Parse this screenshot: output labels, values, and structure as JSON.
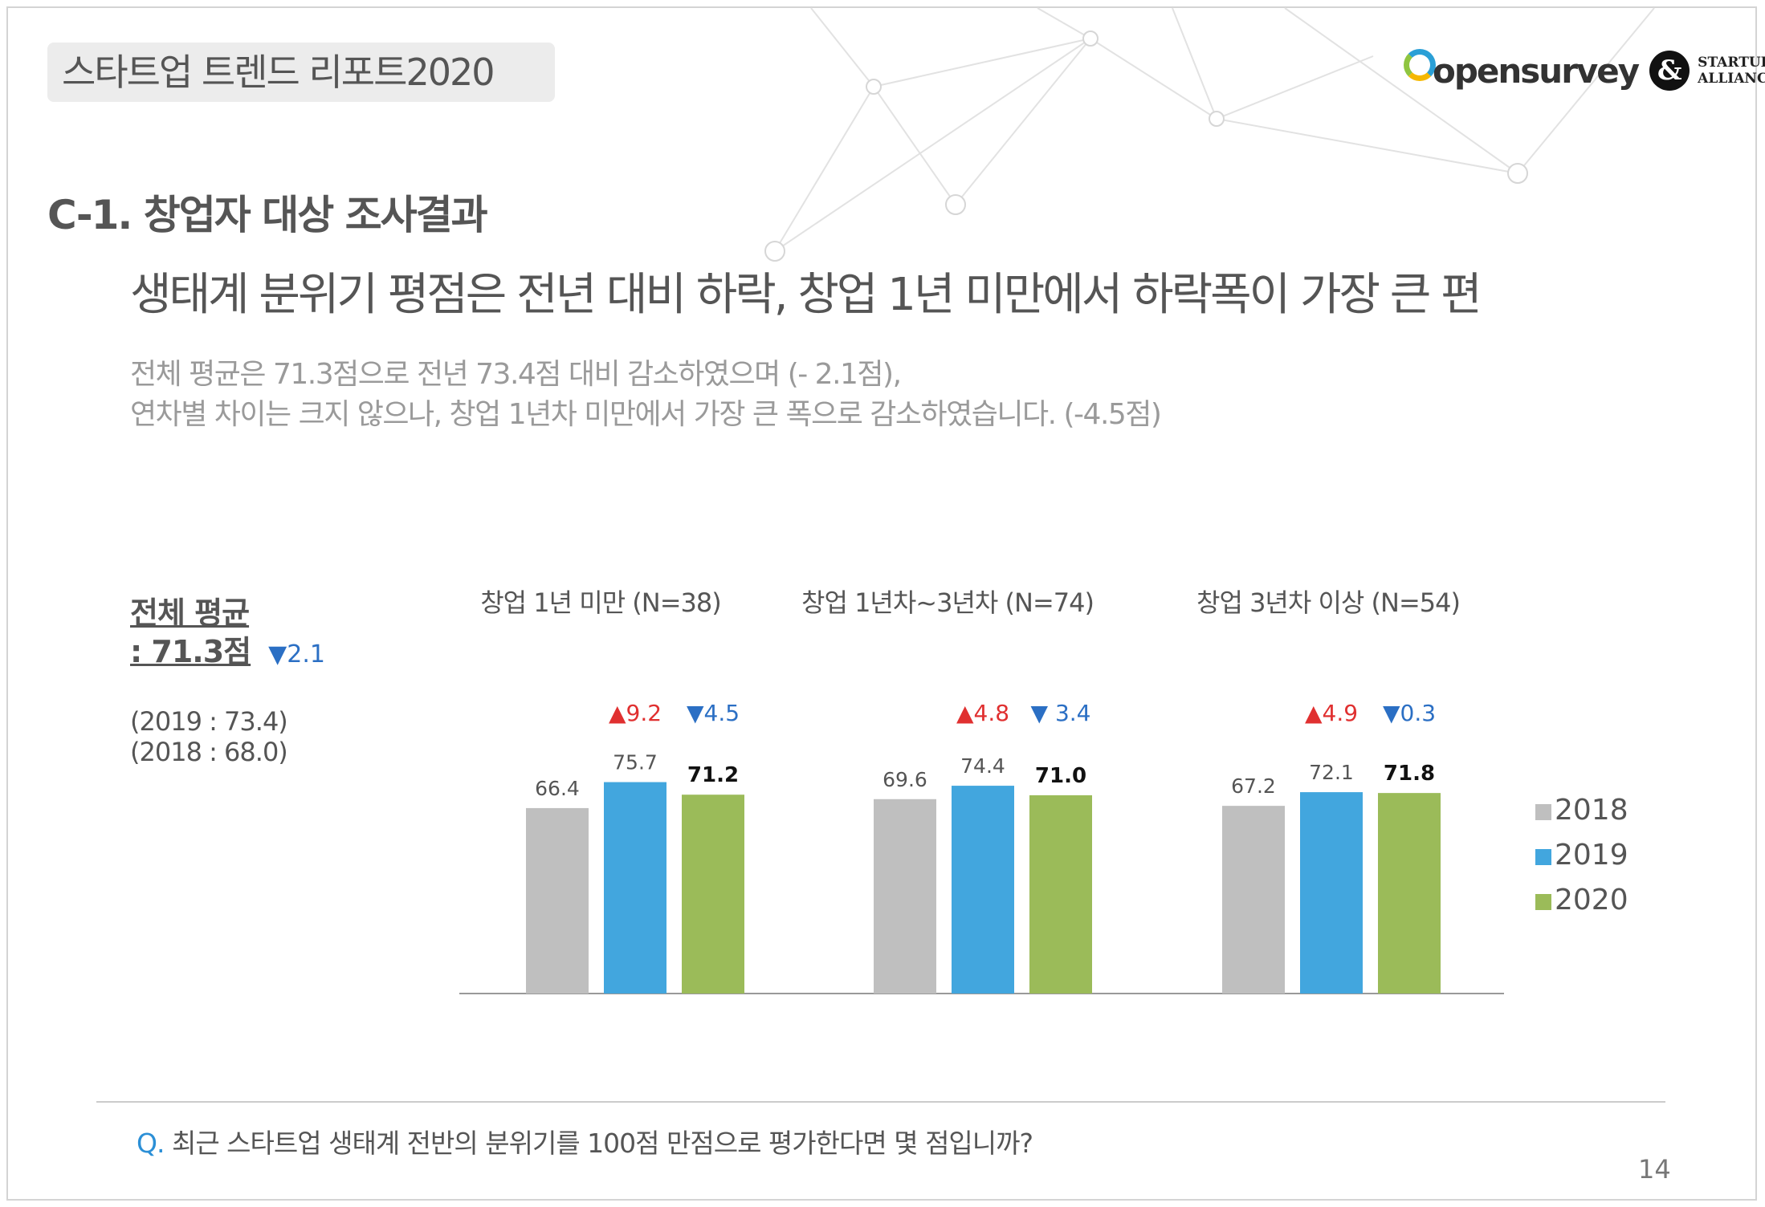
{
  "report_tag": "스타트업 트렌드 리포트2020",
  "logo": {
    "brand": "opensurvey",
    "amp": "&",
    "line1": "STARTUP",
    "line2": "ALLIANCE"
  },
  "section_title": "C-1. 창업자 대상 조사결과",
  "headline": "생태계 분위기 평점은 전년 대비 하락, 창업 1년 미만에서 하락폭이 가장 큰 편",
  "desc": {
    "line1": "전체 평균은 71.3점으로 전년 73.4점 대비 감소하였으며 (- 2.1점),",
    "line2": "연차별 차이는 크지 않으나, 창업 1년차 미만에서 가장 큰 폭으로 감소하였습니다. (-4.5점)"
  },
  "overall": {
    "label": "전체 평균",
    "value_text": ": 71.3점",
    "delta": "▼2.1",
    "prev_2019": "(2019 : 73.4)",
    "prev_2018": "(2018 : 68.0)"
  },
  "question": {
    "q": "Q.",
    "text": " 최근 스타트업 생태계 전반의 분위기를 100점 만점으로 평가한다면 몇 점입니까?"
  },
  "page_number": "14",
  "chart_data": {
    "type": "bar",
    "categories": [
      "창업 1년 미만 (N=38)",
      "창업 1년차~3년차 (N=74)",
      "창업 3년차 이상 (N=54)"
    ],
    "series": [
      {
        "name": "2018",
        "values": [
          66.4,
          69.6,
          67.2
        ],
        "color": "#bfbfbf"
      },
      {
        "name": "2019",
        "values": [
          75.7,
          74.4,
          72.1
        ],
        "color": "#42a6de"
      },
      {
        "name": "2020",
        "values": [
          71.2,
          71.0,
          71.8
        ],
        "color": "#9bbb59"
      }
    ],
    "labels": {
      "2018": [
        "66.4",
        "69.6",
        "67.2"
      ],
      "2019": [
        "75.7",
        "74.4",
        "72.1"
      ],
      "2020": [
        "71.2",
        "71.0",
        "71.8"
      ]
    },
    "annotations": [
      {
        "up": "▲9.2",
        "down": "▼4.5"
      },
      {
        "up": "▲4.8",
        "down": "▼ 3.4"
      },
      {
        "up": "▲4.9",
        "down": "▼0.3"
      }
    ],
    "annotation_colors": {
      "up": "#e03030",
      "down": "#2b6fc4"
    },
    "ylim": [
      0,
      80
    ],
    "grid": false,
    "legend": "right"
  }
}
